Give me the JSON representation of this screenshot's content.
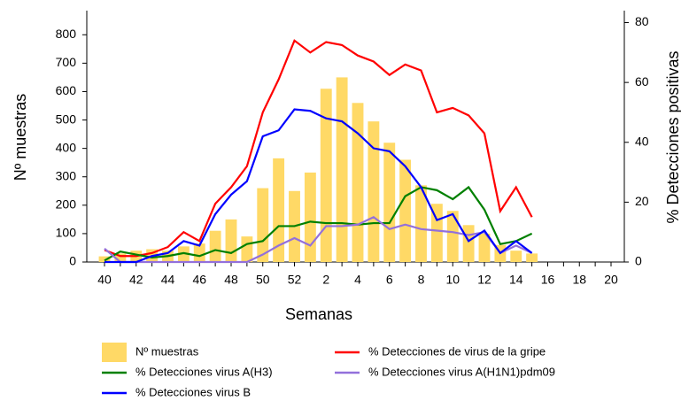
{
  "chart_data": {
    "type": "bar_line",
    "x_label": "Semanas",
    "y_label": "Nº muestras",
    "y2_label": "% Detecciones positivas",
    "categories": [
      40,
      null,
      42,
      null,
      44,
      null,
      46,
      null,
      48,
      null,
      50,
      null,
      52,
      null,
      2,
      null,
      4,
      null,
      6,
      null,
      8,
      null,
      10,
      null,
      12,
      null,
      14,
      null,
      16,
      null,
      18,
      null,
      20
    ],
    "ylim": [
      0,
      885
    ],
    "yticks": [
      0,
      100,
      200,
      300,
      400,
      500,
      600,
      700,
      800
    ],
    "y2lim": [
      0,
      84
    ],
    "y2ticks": [
      0,
      20,
      40,
      60,
      80
    ],
    "series": [
      {
        "name": "Nº muestras",
        "color": "#ffd966",
        "kind": "bar",
        "values": [
          20,
          30,
          40,
          45,
          40,
          55,
          65,
          110,
          150,
          90,
          260,
          365,
          250,
          315,
          610,
          650,
          560,
          495,
          420,
          360,
          270,
          205,
          180,
          130,
          100,
          60,
          40,
          30,
          null,
          null,
          null,
          null,
          null
        ]
      },
      {
        "name": "% Detecciones de virus de la gripe",
        "color": "#ff0000",
        "kind": "line",
        "axis": "y2",
        "values": [
          4,
          2,
          2,
          3,
          5,
          10,
          7,
          19.5,
          25,
          32,
          50,
          61,
          74,
          70,
          73.5,
          72.5,
          69,
          67,
          62.5,
          66,
          64,
          50,
          51.5,
          49,
          43,
          17,
          25,
          15,
          null,
          null,
          null,
          null,
          null
        ]
      },
      {
        "name": "% Detecciones virus A(H3)",
        "color": "#008000",
        "kind": "line",
        "axis": "y2",
        "values": [
          0.5,
          3.5,
          2.5,
          1.5,
          2,
          3,
          2,
          4,
          3,
          6,
          7,
          12,
          12,
          13.5,
          13,
          13,
          12.5,
          13,
          13,
          22,
          25,
          24,
          21,
          25,
          17.5,
          6,
          7,
          9.5,
          null,
          null,
          null,
          null,
          null
        ]
      },
      {
        "name": "% Detecciones virus A(H1N1)pdm09",
        "color": "#9370db",
        "kind": "line",
        "axis": "y2",
        "values": [
          4.5,
          0,
          0,
          0,
          0,
          0,
          0,
          0,
          0,
          0,
          2.5,
          5.5,
          8,
          5.5,
          12,
          12,
          12.5,
          15,
          11,
          12.5,
          11,
          10.5,
          10,
          9,
          10,
          3,
          5.5,
          3,
          null,
          null,
          null,
          null,
          null
        ]
      },
      {
        "name": "% Detecciones virus B",
        "color": "#0000ff",
        "kind": "line",
        "axis": "y2",
        "values": [
          0,
          0,
          0,
          2,
          3,
          7,
          5.5,
          16,
          22.5,
          27,
          42,
          44,
          51,
          50.5,
          48,
          47,
          43,
          38,
          37,
          32,
          25,
          14,
          16,
          7,
          10.5,
          3,
          7,
          3,
          null,
          null,
          null,
          null,
          null
        ]
      }
    ]
  }
}
